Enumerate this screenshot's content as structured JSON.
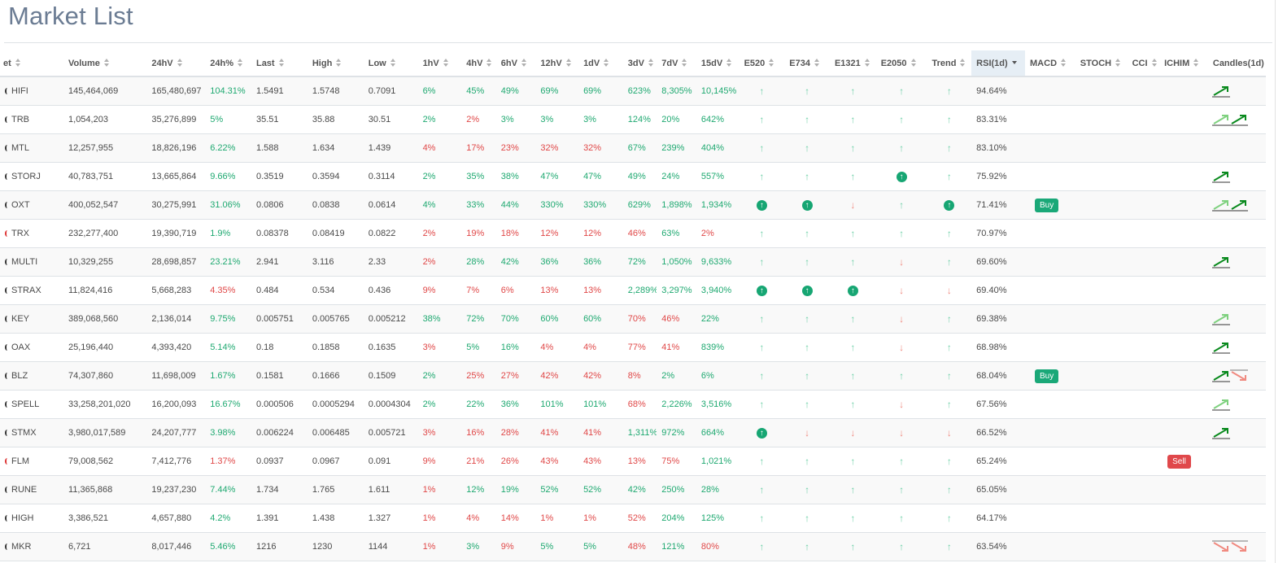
{
  "page": {
    "title": "Market List"
  },
  "columns": [
    "et",
    "Volume",
    "24hV",
    "24h%",
    "Last",
    "High",
    "Low",
    "1hV",
    "4hV",
    "6hV",
    "12hV",
    "1dV",
    "3dV",
    "7dV",
    "15dV",
    "E520",
    "E734",
    "E1321",
    "E2050",
    "Trend",
    "RSI(1d)",
    "MACD",
    "STOCH",
    "CCI",
    "ICHIM",
    "Candles(1d)"
  ],
  "sorted_column": "RSI(1d)",
  "colors": {
    "positive": "#1fa971",
    "negative": "#e04848",
    "up_arrow": "#6fd0a8",
    "down_arrow": "#f08a80",
    "circle": "#17a673",
    "buy": "#1aa878",
    "sell": "#e0484b",
    "candle_dark": "#0a8a1e",
    "candle_light": "#7fd17f"
  },
  "rows": [
    {
      "coin": "HIFI",
      "volume": "145,464,069",
      "v24": "165,480,697",
      "chg": "104.31%",
      "last": "1.5491",
      "high": "1.5748",
      "low": "0.7091",
      "tf": [
        "6%",
        "45%",
        "49%",
        "69%",
        "69%",
        "623%",
        "8,305%",
        "10,145%"
      ],
      "sig": [
        "up",
        "up",
        "up",
        "up",
        "up"
      ],
      "rsi": "94.64%",
      "macd": "",
      "ichim": "",
      "candles": [
        "up-dark"
      ]
    },
    {
      "coin": "TRB",
      "volume": "1,054,203",
      "v24": "35,276,899",
      "chg": "5%",
      "last": "35.51",
      "high": "35.88",
      "low": "30.51",
      "tf": [
        "2%",
        "-2%",
        "3%",
        "3%",
        "3%",
        "124%",
        "20%",
        "642%"
      ],
      "sig": [
        "up",
        "up",
        "up",
        "up",
        "up"
      ],
      "rsi": "83.31%",
      "macd": "",
      "ichim": "",
      "candles": [
        "up-light",
        "up-dark"
      ]
    },
    {
      "coin": "MTL",
      "volume": "12,257,955",
      "v24": "18,826,196",
      "chg": "6.22%",
      "last": "1.588",
      "high": "1.634",
      "low": "1.439",
      "tf": [
        "-4%",
        "-17%",
        "-23%",
        "-32%",
        "-32%",
        "67%",
        "239%",
        "404%"
      ],
      "sig": [
        "up",
        "up",
        "up",
        "up",
        "up"
      ],
      "rsi": "83.10%",
      "macd": "",
      "ichim": "",
      "candles": []
    },
    {
      "coin": "STORJ",
      "volume": "40,783,751",
      "v24": "13,665,864",
      "chg": "9.66%",
      "last": "0.3519",
      "high": "0.3594",
      "low": "0.3114",
      "tf": [
        "2%",
        "35%",
        "38%",
        "47%",
        "47%",
        "49%",
        "24%",
        "557%"
      ],
      "sig": [
        "up",
        "up",
        "up",
        "circle",
        "up"
      ],
      "rsi": "75.92%",
      "macd": "",
      "ichim": "",
      "candles": [
        "up-dark"
      ]
    },
    {
      "coin": "OXT",
      "volume": "400,052,547",
      "v24": "30,275,991",
      "chg": "31.06%",
      "last": "0.0806",
      "high": "0.0838",
      "low": "0.0614",
      "tf": [
        "4%",
        "33%",
        "44%",
        "330%",
        "330%",
        "629%",
        "1,898%",
        "1,934%"
      ],
      "sig": [
        "circle",
        "circle",
        "down",
        "up",
        "circle"
      ],
      "rsi": "71.41%",
      "macd": "Buy",
      "ichim": "",
      "candles": [
        "up-light",
        "up-dark"
      ]
    },
    {
      "coin": "TRX",
      "volume": "232,277,400",
      "v24": "19,390,719",
      "chg": "1.9%",
      "last": "0.08378",
      "high": "0.08419",
      "low": "0.0822",
      "tf": [
        "-2%",
        "-19%",
        "-18%",
        "-12%",
        "-12%",
        "-46%",
        "63%",
        "-2%"
      ],
      "sig": [
        "up",
        "up",
        "up",
        "up",
        "up"
      ],
      "rsi": "70.97%",
      "macd": "",
      "ichim": "",
      "candles": []
    },
    {
      "coin": "MULTI",
      "volume": "10,329,255",
      "v24": "28,698,857",
      "chg": "23.21%",
      "last": "2.941",
      "high": "3.116",
      "low": "2.33",
      "tf": [
        "-2%",
        "28%",
        "42%",
        "36%",
        "36%",
        "72%",
        "1,050%",
        "9,633%"
      ],
      "sig": [
        "up",
        "up",
        "up",
        "down",
        "up"
      ],
      "rsi": "69.60%",
      "macd": "",
      "ichim": "",
      "candles": [
        "up-dark"
      ]
    },
    {
      "coin": "STRAX",
      "volume": "11,824,416",
      "v24": "5,668,283",
      "chg": "-4.35%",
      "last": "0.484",
      "high": "0.534",
      "low": "0.436",
      "tf": [
        "-9%",
        "-7%",
        "-6%",
        "-13%",
        "-13%",
        "2,289%",
        "3,297%",
        "3,940%"
      ],
      "sig": [
        "circle",
        "circle",
        "circle",
        "down",
        "down"
      ],
      "rsi": "69.40%",
      "macd": "",
      "ichim": "",
      "candles": []
    },
    {
      "coin": "KEY",
      "volume": "389,068,560",
      "v24": "2,136,014",
      "chg": "9.75%",
      "last": "0.005751",
      "high": "0.005765",
      "low": "0.005212",
      "tf": [
        "38%",
        "72%",
        "70%",
        "60%",
        "60%",
        "-70%",
        "-46%",
        "22%"
      ],
      "sig": [
        "up",
        "up",
        "up",
        "down",
        "up"
      ],
      "rsi": "69.38%",
      "macd": "",
      "ichim": "",
      "candles": [
        "up-light"
      ]
    },
    {
      "coin": "OAX",
      "volume": "25,196,440",
      "v24": "4,393,420",
      "chg": "5.14%",
      "last": "0.18",
      "high": "0.1858",
      "low": "0.1635",
      "tf": [
        "-3%",
        "5%",
        "16%",
        "-4%",
        "-4%",
        "-77%",
        "-41%",
        "839%"
      ],
      "sig": [
        "up",
        "up",
        "up",
        "down",
        "up"
      ],
      "rsi": "68.98%",
      "macd": "",
      "ichim": "",
      "candles": [
        "up-dark"
      ]
    },
    {
      "coin": "BLZ",
      "volume": "74,307,860",
      "v24": "11,698,009",
      "chg": "1.67%",
      "last": "0.1581",
      "high": "0.1666",
      "low": "0.1509",
      "tf": [
        "2%",
        "-25%",
        "-27%",
        "-42%",
        "-42%",
        "-8%",
        "2%",
        "6%"
      ],
      "sig": [
        "up",
        "up",
        "up",
        "up",
        "up"
      ],
      "rsi": "68.04%",
      "macd": "Buy",
      "ichim": "",
      "candles": [
        "up-dark",
        "down-light"
      ]
    },
    {
      "coin": "SPELL",
      "volume": "33,258,201,020",
      "v24": "16,200,093",
      "chg": "16.67%",
      "last": "0.000506",
      "high": "0.0005294",
      "low": "0.0004304",
      "tf": [
        "2%",
        "22%",
        "36%",
        "101%",
        "101%",
        "-68%",
        "2,226%",
        "3,516%"
      ],
      "sig": [
        "up",
        "up",
        "up",
        "down",
        "up"
      ],
      "rsi": "67.56%",
      "macd": "",
      "ichim": "",
      "candles": [
        "up-light"
      ]
    },
    {
      "coin": "STMX",
      "volume": "3,980,017,589",
      "v24": "24,207,777",
      "chg": "3.98%",
      "last": "0.006224",
      "high": "0.006485",
      "low": "0.005721",
      "tf": [
        "-3%",
        "-16%",
        "-28%",
        "-41%",
        "-41%",
        "1,311%",
        "972%",
        "664%"
      ],
      "sig": [
        "circle",
        "down",
        "down",
        "down",
        "down"
      ],
      "rsi": "66.52%",
      "macd": "",
      "ichim": "",
      "candles": [
        "up-dark"
      ]
    },
    {
      "coin": "FLM",
      "volume": "79,008,562",
      "v24": "7,412,776",
      "chg": "-1.37%",
      "last": "0.0937",
      "high": "0.0967",
      "low": "0.091",
      "tf": [
        "-9%",
        "-21%",
        "-26%",
        "-43%",
        "-43%",
        "-13%",
        "-75%",
        "1,021%"
      ],
      "sig": [
        "up",
        "up",
        "up",
        "up",
        "up"
      ],
      "rsi": "65.24%",
      "macd": "",
      "ichim": "Sell",
      "candles": []
    },
    {
      "coin": "RUNE",
      "volume": "11,365,868",
      "v24": "19,237,230",
      "chg": "7.44%",
      "last": "1.734",
      "high": "1.765",
      "low": "1.611",
      "tf": [
        "-1%",
        "12%",
        "19%",
        "52%",
        "52%",
        "42%",
        "250%",
        "28%"
      ],
      "sig": [
        "up",
        "up",
        "up",
        "up",
        "up"
      ],
      "rsi": "65.05%",
      "macd": "",
      "ichim": "",
      "candles": []
    },
    {
      "coin": "HIGH",
      "volume": "3,386,521",
      "v24": "4,657,880",
      "chg": "4.2%",
      "last": "1.391",
      "high": "1.438",
      "low": "1.327",
      "tf": [
        "-1%",
        "-4%",
        "-14%",
        "-1%",
        "-1%",
        "-52%",
        "204%",
        "125%"
      ],
      "sig": [
        "up",
        "up",
        "up",
        "up",
        "up"
      ],
      "rsi": "64.17%",
      "macd": "",
      "ichim": "",
      "candles": []
    },
    {
      "coin": "MKR",
      "volume": "6,721",
      "v24": "8,017,446",
      "chg": "5.46%",
      "last": "1216",
      "high": "1230",
      "low": "1144",
      "tf": [
        "-1%",
        "3%",
        "-9%",
        "5%",
        "5%",
        "-48%",
        "121%",
        "-80%"
      ],
      "sig": [
        "up",
        "up",
        "up",
        "up",
        "up"
      ],
      "rsi": "63.54%",
      "macd": "",
      "ichim": "",
      "candles": [
        "down-light",
        "down-light"
      ]
    }
  ]
}
